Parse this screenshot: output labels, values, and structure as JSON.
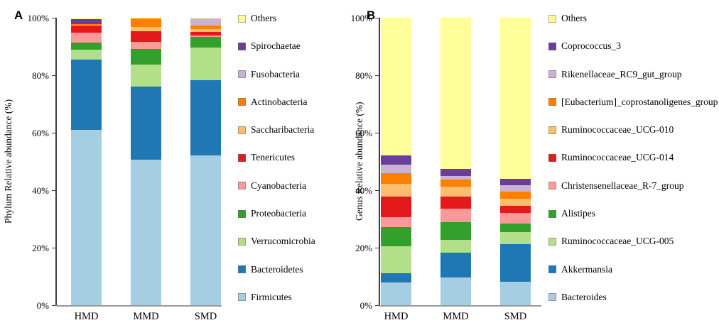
{
  "chart_data": [
    {
      "type": "bar",
      "stacked": true,
      "panel_label": "A",
      "title": "",
      "xlabel": "",
      "ylabel": "Phylum Relative abundance (%)",
      "ylim": [
        0,
        100
      ],
      "y_tick_labels": [
        "0%",
        "20%",
        "40%",
        "60%",
        "80%",
        "100%"
      ],
      "categories": [
        "HMD",
        "MMD",
        "SMD"
      ],
      "legend_position": "right",
      "legend_order_top_to_bottom": [
        "Others",
        "Spirochaetae",
        "Fusobacteria",
        "Actinobacteria",
        "Saccharibacteria",
        "Tenericutes",
        "Cyanobacteria",
        "Proteobacteria",
        "Verrucomicrobia",
        "Bacteroidetes",
        "Firmicutes"
      ],
      "series": [
        {
          "name": "Firmicutes",
          "color": "#A6CEE3",
          "values": [
            61.0,
            50.5,
            52.0
          ]
        },
        {
          "name": "Bacteroidetes",
          "color": "#1F78B4",
          "values": [
            24.5,
            25.5,
            26.2
          ]
        },
        {
          "name": "Verrucomicrobia",
          "color": "#B2DF8A",
          "values": [
            3.4,
            7.8,
            11.4
          ]
        },
        {
          "name": "Proteobacteria",
          "color": "#33A02C",
          "values": [
            2.5,
            5.3,
            3.7
          ]
        },
        {
          "name": "Cyanobacteria",
          "color": "#FB9A99",
          "values": [
            3.5,
            2.5,
            0.6
          ]
        },
        {
          "name": "Tenericutes",
          "color": "#E31A1C",
          "values": [
            2.4,
            3.7,
            1.1
          ]
        },
        {
          "name": "Saccharibacteria",
          "color": "#FDBF6F",
          "values": [
            0.2,
            1.6,
            1.0
          ]
        },
        {
          "name": "Actinobacteria",
          "color": "#FF7F00",
          "values": [
            0.3,
            2.8,
            1.2
          ]
        },
        {
          "name": "Fusobacteria",
          "color": "#CAB2D6",
          "values": [
            0.1,
            0.0,
            2.5
          ]
        },
        {
          "name": "Spirochaetae",
          "color": "#6A3D9A",
          "values": [
            1.6,
            0.0,
            0.0
          ]
        },
        {
          "name": "Others",
          "color": "#FFFF99",
          "values": [
            0.5,
            0.3,
            0.3
          ]
        }
      ]
    },
    {
      "type": "bar",
      "stacked": true,
      "panel_label": "B",
      "title": "",
      "xlabel": "",
      "ylabel": "Genus Relative abundance (%)",
      "ylim": [
        0,
        100
      ],
      "y_tick_labels": [
        "0%",
        "20%",
        "40%",
        "60%",
        "80%",
        "100%"
      ],
      "categories": [
        "HMD",
        "MMD",
        "SMD"
      ],
      "legend_position": "right",
      "legend_order_top_to_bottom": [
        "Others",
        "Coprococcus_3",
        "Rikenellaceae_RC9_gut_group",
        "[Eubacterium]_coprostanoligenes_group",
        "Ruminococcaceae_UCG-010",
        "Ruminococcaceae_UCG-014",
        "Christensenellaceae_R-7_group",
        "Alistipes",
        "Ruminococcaceae_UCG-005",
        "Akkermansia",
        "Bacteroides"
      ],
      "series": [
        {
          "name": "Bacteroides",
          "color": "#A6CEE3",
          "values": [
            7.8,
            9.6,
            8.2
          ]
        },
        {
          "name": "Akkermansia",
          "color": "#1F78B4",
          "values": [
            3.3,
            8.6,
            13.0
          ]
        },
        {
          "name": "Ruminococcaceae_UCG-005",
          "color": "#B2DF8A",
          "values": [
            9.5,
            4.4,
            4.3
          ]
        },
        {
          "name": "Alistipes",
          "color": "#33A02C",
          "values": [
            6.6,
            6.2,
            2.9
          ]
        },
        {
          "name": "Christensenellaceae_R-7_group",
          "color": "#FB9A99",
          "values": [
            3.5,
            4.9,
            3.7
          ]
        },
        {
          "name": "Ruminococcaceae_UCG-014",
          "color": "#E31A1C",
          "values": [
            7.0,
            4.1,
            2.5
          ]
        },
        {
          "name": "Ruminococcaceae_UCG-010",
          "color": "#FDBF6F",
          "values": [
            4.5,
            3.5,
            2.5
          ]
        },
        {
          "name": "[Eubacterium]_coprostanoligenes_group",
          "color": "#FF7F00",
          "values": [
            3.7,
            2.5,
            2.5
          ]
        },
        {
          "name": "Rikenellaceae_RC9_gut_group",
          "color": "#CAB2D6",
          "values": [
            3.0,
            1.2,
            2.1
          ]
        },
        {
          "name": "Coprococcus_3",
          "color": "#6A3D9A",
          "values": [
            3.1,
            2.5,
            2.2
          ]
        },
        {
          "name": "Others",
          "color": "#FFFF99",
          "values": [
            48.0,
            52.5,
            56.1
          ]
        }
      ]
    }
  ]
}
